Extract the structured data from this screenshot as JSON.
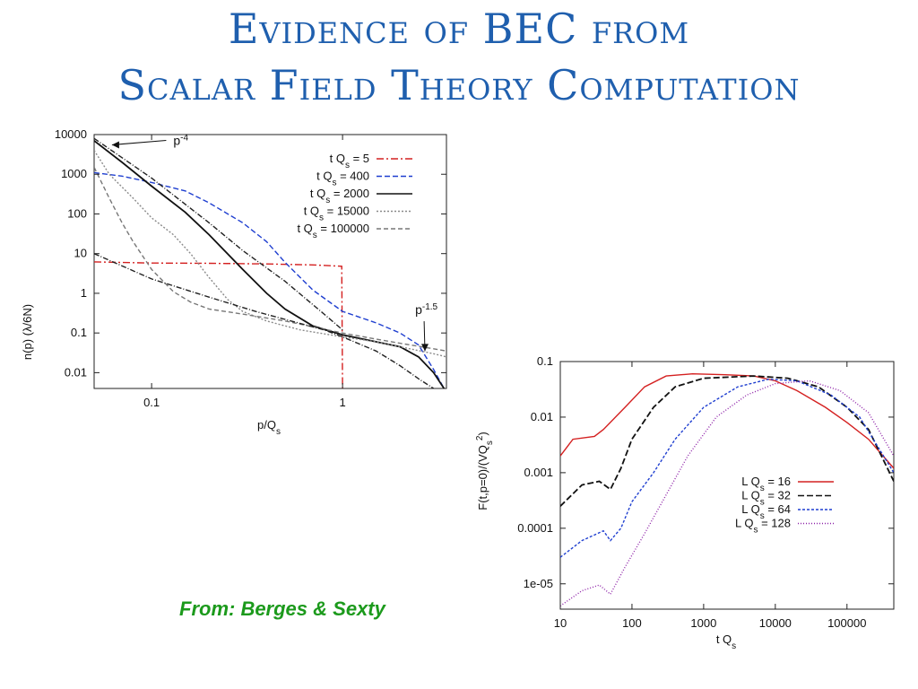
{
  "slide": {
    "title_line1": "Evidence of BEC from",
    "title_line2": "Scalar Field Theory Computation",
    "credit": "From: Berges & Sexty",
    "colors": {
      "title": "#1f5fae",
      "credit": "#1c9a1c"
    }
  },
  "chart_data": [
    {
      "type": "line",
      "title": "",
      "xlabel": "p/Q_s",
      "ylabel": "n(p) (λ/6N)",
      "xscale": "log",
      "yscale": "log",
      "xlim": [
        0.05,
        3.5
      ],
      "ylim": [
        0.004,
        10000
      ],
      "x_ticks": [
        0.1,
        1
      ],
      "x_tick_labels": [
        "0.1",
        "1"
      ],
      "y_ticks": [
        10000,
        1000,
        100,
        10,
        1,
        0.1,
        0.01
      ],
      "y_tick_labels": [
        "10000",
        "1000",
        "100",
        "10",
        "1",
        "0.1",
        "0.01"
      ],
      "grid": false,
      "legend_position": "top-right",
      "series": [
        {
          "name": "t Q_s = 5",
          "color": "#d42020",
          "dash": "8,3,2,3",
          "points": [
            [
              0.05,
              6.2
            ],
            [
              0.1,
              5.8
            ],
            [
              0.2,
              5.7
            ],
            [
              0.4,
              5.5
            ],
            [
              0.7,
              5.2
            ],
            [
              0.99,
              4.8
            ],
            [
              1.0,
              0.004
            ]
          ]
        },
        {
          "name": "t Q_s = 400",
          "color": "#1f3fd0",
          "dash": "6,3",
          "points": [
            [
              0.05,
              1100
            ],
            [
              0.07,
              900
            ],
            [
              0.1,
              620
            ],
            [
              0.15,
              380
            ],
            [
              0.2,
              190
            ],
            [
              0.3,
              60
            ],
            [
              0.4,
              20
            ],
            [
              0.5,
              6
            ],
            [
              0.7,
              1.2
            ],
            [
              1.0,
              0.35
            ],
            [
              1.5,
              0.18
            ],
            [
              2.0,
              0.1
            ],
            [
              2.5,
              0.05
            ],
            [
              3.0,
              0.012
            ],
            [
              3.4,
              0.004
            ]
          ]
        },
        {
          "name": "t Q_s = 2000",
          "color": "#111111",
          "dash": "",
          "points": [
            [
              0.05,
              7000
            ],
            [
              0.07,
              2000
            ],
            [
              0.1,
              500
            ],
            [
              0.15,
              110
            ],
            [
              0.2,
              30
            ],
            [
              0.3,
              4
            ],
            [
              0.4,
              1
            ],
            [
              0.5,
              0.4
            ],
            [
              0.7,
              0.15
            ],
            [
              1.0,
              0.09
            ],
            [
              1.5,
              0.06
            ],
            [
              2.0,
              0.045
            ],
            [
              2.5,
              0.025
            ],
            [
              3.0,
              0.01
            ],
            [
              3.4,
              0.004
            ]
          ]
        },
        {
          "name": "t Q_s = 15000",
          "color": "#8a8a8a",
          "dash": "2,2",
          "points": [
            [
              0.05,
              4000
            ],
            [
              0.06,
              1000
            ],
            [
              0.08,
              250
            ],
            [
              0.1,
              80
            ],
            [
              0.13,
              30
            ],
            [
              0.16,
              10
            ],
            [
              0.2,
              2.5
            ],
            [
              0.25,
              0.7
            ],
            [
              0.3,
              0.35
            ],
            [
              0.4,
              0.2
            ],
            [
              0.6,
              0.12
            ],
            [
              1.0,
              0.08
            ],
            [
              1.5,
              0.06
            ],
            [
              2.0,
              0.045
            ],
            [
              3.0,
              0.03
            ],
            [
              3.5,
              0.025
            ]
          ]
        },
        {
          "name": "t Q_s = 100000",
          "color": "#777777",
          "dash": "5,3",
          "points": [
            [
              0.05,
              1500
            ],
            [
              0.06,
              250
            ],
            [
              0.07,
              60
            ],
            [
              0.08,
              20
            ],
            [
              0.1,
              4
            ],
            [
              0.13,
              1.1
            ],
            [
              0.16,
              0.6
            ],
            [
              0.2,
              0.4
            ],
            [
              0.3,
              0.3
            ],
            [
              0.5,
              0.2
            ],
            [
              1.0,
              0.1
            ],
            [
              1.5,
              0.07
            ],
            [
              2.0,
              0.055
            ],
            [
              3.0,
              0.04
            ],
            [
              3.5,
              0.035
            ]
          ]
        },
        {
          "name": "",
          "color": "#222222",
          "dash": "6,2,1,2",
          "points": [
            [
              0.05,
              10
            ],
            [
              0.1,
              2.3
            ],
            [
              0.2,
              0.8
            ],
            [
              0.35,
              0.35
            ],
            [
              0.5,
              0.22
            ],
            [
              0.8,
              0.12
            ],
            [
              1.0,
              0.08
            ],
            [
              1.5,
              0.035
            ],
            [
              2.0,
              0.015
            ],
            [
              2.5,
              0.007
            ],
            [
              3.0,
              0.004
            ]
          ]
        },
        {
          "name": "",
          "color": "#222222",
          "dash": "6,2,1,2",
          "points": [
            [
              0.05,
              8000
            ],
            [
              0.1,
              800
            ],
            [
              0.2,
              60
            ],
            [
              0.3,
              12
            ],
            [
              0.5,
              2.0
            ],
            [
              0.8,
              0.3
            ],
            [
              1.0,
              0.12
            ]
          ]
        }
      ],
      "annotations": [
        {
          "text": "p",
          "exponent": "-4",
          "x": 0.13,
          "y": 5500,
          "arrow_to": [
            0.062,
            5500
          ]
        },
        {
          "text": "p",
          "exponent": "-1.5",
          "x": 2.4,
          "y": 0.3,
          "arrow_to": [
            2.7,
            0.035
          ]
        }
      ]
    },
    {
      "type": "line",
      "title": "",
      "xlabel": "t Q_s",
      "ylabel": "F(t,p=0)/(VQ_s^2)",
      "xscale": "log",
      "yscale": "log",
      "xlim": [
        10,
        450000
      ],
      "ylim": [
        3.5e-06,
        0.1
      ],
      "x_ticks": [
        10,
        100,
        1000,
        10000,
        100000
      ],
      "x_tick_labels": [
        "10",
        "100",
        "1000",
        "10000",
        "100000"
      ],
      "y_ticks": [
        0.1,
        0.01,
        0.001,
        0.0001,
        1e-05
      ],
      "y_tick_labels": [
        "0.1",
        "0.01",
        "0.001",
        "0.0001",
        "1e-05"
      ],
      "grid": false,
      "legend_position": "bottom-right",
      "series": [
        {
          "name": "L Q_s = 16",
          "color": "#d42020",
          "dash": "",
          "points": [
            [
              10,
              0.002
            ],
            [
              15,
              0.004
            ],
            [
              30,
              0.0045
            ],
            [
              40,
              0.006
            ],
            [
              80,
              0.015
            ],
            [
              150,
              0.035
            ],
            [
              300,
              0.055
            ],
            [
              700,
              0.06
            ],
            [
              2000,
              0.058
            ],
            [
              5000,
              0.055
            ],
            [
              10000,
              0.045
            ],
            [
              20000,
              0.03
            ],
            [
              50000,
              0.015
            ],
            [
              100000,
              0.008
            ],
            [
              200000,
              0.004
            ],
            [
              450000,
              0.0012
            ]
          ]
        },
        {
          "name": "L Q_s = 32",
          "color": "#111111",
          "dash": "7,3",
          "points": [
            [
              10,
              0.00025
            ],
            [
              20,
              0.0006
            ],
            [
              35,
              0.0007
            ],
            [
              50,
              0.0005
            ],
            [
              70,
              0.0012
            ],
            [
              100,
              0.004
            ],
            [
              200,
              0.015
            ],
            [
              400,
              0.035
            ],
            [
              1000,
              0.05
            ],
            [
              5000,
              0.055
            ],
            [
              15000,
              0.05
            ],
            [
              40000,
              0.035
            ],
            [
              100000,
              0.015
            ],
            [
              200000,
              0.006
            ],
            [
              450000,
              0.0007
            ]
          ]
        },
        {
          "name": "L Q_s = 64",
          "color": "#1f3fd0",
          "dash": "3,2",
          "points": [
            [
              10,
              3e-05
            ],
            [
              20,
              6e-05
            ],
            [
              40,
              9e-05
            ],
            [
              50,
              6e-05
            ],
            [
              70,
              0.0001
            ],
            [
              100,
              0.0003
            ],
            [
              200,
              0.001
            ],
            [
              400,
              0.004
            ],
            [
              1000,
              0.015
            ],
            [
              3000,
              0.035
            ],
            [
              8000,
              0.048
            ],
            [
              20000,
              0.045
            ],
            [
              60000,
              0.025
            ],
            [
              150000,
              0.01
            ],
            [
              450000,
              0.001
            ]
          ]
        },
        {
          "name": "L Q_s = 128",
          "color": "#8e22a8",
          "dash": "1,2",
          "points": [
            [
              10,
              4e-06
            ],
            [
              20,
              7.5e-06
            ],
            [
              35,
              9.5e-06
            ],
            [
              50,
              6.5e-06
            ],
            [
              80,
              2e-05
            ],
            [
              150,
              8e-05
            ],
            [
              300,
              0.0004
            ],
            [
              600,
              0.002
            ],
            [
              1500,
              0.01
            ],
            [
              4000,
              0.025
            ],
            [
              10000,
              0.04
            ],
            [
              30000,
              0.045
            ],
            [
              80000,
              0.03
            ],
            [
              200000,
              0.012
            ],
            [
              450000,
              0.002
            ]
          ]
        }
      ]
    }
  ]
}
